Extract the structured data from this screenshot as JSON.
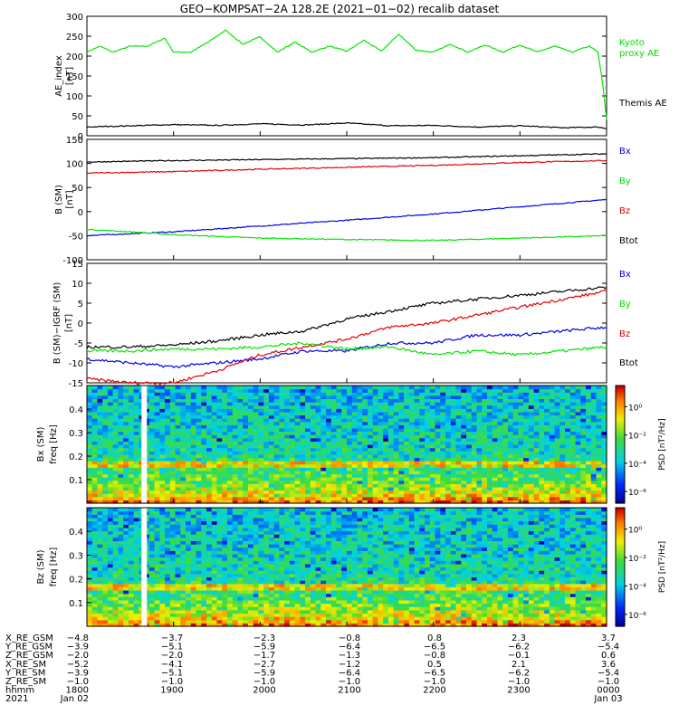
{
  "title": "GEO−KOMPSAT−2A 128.2E (2021−01−02) recalib dataset",
  "colors": {
    "black": "#000000",
    "green": "#00e600",
    "red": "#e60000",
    "blue": "#0000e6",
    "legend_green": "#00dd00",
    "legend_red": "#dd0000",
    "legend_blue": "#0000cc"
  },
  "chart_data": [
    {
      "type": "line",
      "ylabel": "AE_index [nT]",
      "ylim": [
        0,
        300
      ],
      "yticks": [
        0,
        50,
        100,
        150,
        200,
        250,
        300
      ],
      "series": [
        {
          "name": "Kyoto proxy AE",
          "color": "green",
          "x": [
            0,
            0.15,
            0.3,
            0.5,
            0.7,
            0.9,
            1.0,
            1.2,
            1.4,
            1.6,
            1.8,
            2.0,
            2.2,
            2.4,
            2.6,
            2.8,
            3.0,
            3.2,
            3.4,
            3.6,
            3.8,
            4.0,
            4.2,
            4.4,
            4.6,
            4.8,
            5.0,
            5.2,
            5.4,
            5.6,
            5.8,
            5.9,
            5.95,
            6.0
          ],
          "y": [
            210,
            225,
            210,
            225,
            225,
            245,
            210,
            210,
            235,
            265,
            230,
            248,
            210,
            235,
            210,
            225,
            212,
            240,
            212,
            255,
            215,
            210,
            230,
            210,
            228,
            210,
            228,
            210,
            225,
            210,
            225,
            210,
            140,
            40
          ]
        },
        {
          "name": "Themis AE",
          "color": "black",
          "x": [
            0,
            0.5,
            1.0,
            1.5,
            2.0,
            2.5,
            3.0,
            3.5,
            4.0,
            4.5,
            5.0,
            5.5,
            5.9,
            6.0
          ],
          "y": [
            22,
            25,
            28,
            26,
            30,
            27,
            32,
            25,
            26,
            22,
            25,
            20,
            22,
            18
          ]
        }
      ]
    },
    {
      "type": "line",
      "ylabel": "B (SM) [nT]",
      "ylim": [
        -100,
        150
      ],
      "yticks": [
        -100,
        -50,
        0,
        50,
        100,
        150
      ],
      "series": [
        {
          "name": "Bx",
          "color": "blue",
          "x": [
            0,
            1,
            2,
            3,
            4,
            5,
            6
          ],
          "y": [
            -50,
            -42,
            -30,
            -18,
            -5,
            10,
            25
          ]
        },
        {
          "name": "By",
          "color": "green",
          "x": [
            0,
            0.5,
            1,
            2,
            3,
            4,
            5,
            6
          ],
          "y": [
            -37,
            -42,
            -48,
            -55,
            -58,
            -60,
            -55,
            -50
          ]
        },
        {
          "name": "Bz",
          "color": "red",
          "x": [
            0,
            1,
            2,
            3,
            4,
            5,
            6
          ],
          "y": [
            80,
            83,
            88,
            92,
            96,
            102,
            106
          ]
        },
        {
          "name": "Btot",
          "color": "black",
          "x": [
            0,
            1,
            2,
            3,
            4,
            5,
            6
          ],
          "y": [
            103,
            106,
            108,
            110,
            112,
            116,
            120
          ]
        }
      ]
    },
    {
      "type": "line",
      "ylabel": "B (SM)−IGRF (SM) [nT]",
      "ylim": [
        -15,
        15
      ],
      "yticks": [
        -15,
        -10,
        -5,
        0,
        5,
        10,
        15
      ],
      "series": [
        {
          "name": "Bx",
          "color": "blue",
          "x": [
            0,
            0.5,
            1.0,
            1.5,
            2.0,
            2.5,
            3.0,
            3.5,
            4.0,
            4.5,
            5.0,
            5.5,
            6.0
          ],
          "y": [
            -9,
            -10,
            -11,
            -10,
            -9,
            -7,
            -7,
            -5,
            -5,
            -3,
            -3,
            -2,
            -1
          ]
        },
        {
          "name": "By",
          "color": "green",
          "x": [
            0,
            0.5,
            1.0,
            1.5,
            2.0,
            2.5,
            3.0,
            3.5,
            4.0,
            4.5,
            5.0,
            5.5,
            6.0
          ],
          "y": [
            -7,
            -7,
            -6.5,
            -6.5,
            -6,
            -5,
            -6.5,
            -6,
            -8,
            -7,
            -8,
            -7,
            -6
          ]
        },
        {
          "name": "Bz",
          "color": "red",
          "x": [
            0,
            0.5,
            1.0,
            1.5,
            2.0,
            2.5,
            3.0,
            3.5,
            4.0,
            4.5,
            5.0,
            5.5,
            6.0
          ],
          "y": [
            -14,
            -15,
            -15,
            -12,
            -8,
            -6,
            -4,
            -1,
            0,
            2,
            4,
            6,
            8
          ]
        },
        {
          "name": "Btot",
          "color": "black",
          "x": [
            0,
            0.5,
            1.0,
            1.5,
            2.0,
            2.5,
            3.0,
            3.5,
            4.0,
            4.5,
            5.0,
            5.5,
            6.0
          ],
          "y": [
            -6,
            -6,
            -5.5,
            -4.5,
            -3,
            -2,
            1,
            3,
            5,
            6,
            7,
            8,
            9
          ]
        }
      ]
    },
    {
      "type": "heatmap",
      "ylabel": "Bx (SM) freq [Hz]",
      "ylim": [
        0,
        0.5
      ],
      "yticks": [
        0.1,
        0.2,
        0.3,
        0.4
      ],
      "colorbar": {
        "label": "PSD [nT²/Hz]",
        "ticks": [
          "10⁰",
          "10⁻²",
          "10⁻⁴",
          "10⁻⁶"
        ]
      }
    },
    {
      "type": "heatmap",
      "ylabel": "Bz (SM) freq [Hz]",
      "ylim": [
        0,
        0.5
      ],
      "yticks": [
        0.1,
        0.2,
        0.3,
        0.4
      ],
      "colorbar": {
        "label": "PSD [nT²/Hz]",
        "ticks": [
          "10⁰",
          "10⁻²",
          "10⁻⁴",
          "10⁻⁶"
        ]
      }
    }
  ],
  "legends": [
    [
      {
        "text": "Kyoto",
        "color": "legend_green"
      },
      {
        "text": "proxy AE",
        "color": "legend_green"
      },
      {
        "text": "Themis AE",
        "color": "black"
      }
    ],
    [
      {
        "text": "Bx",
        "color": "legend_blue"
      },
      {
        "text": "By",
        "color": "legend_green"
      },
      {
        "text": "Bz",
        "color": "legend_red"
      },
      {
        "text": "Btot",
        "color": "black"
      }
    ],
    [
      {
        "text": "Bx",
        "color": "legend_blue"
      },
      {
        "text": "By",
        "color": "legend_green"
      },
      {
        "text": "Bz",
        "color": "legend_red"
      },
      {
        "text": "Btot",
        "color": "black"
      }
    ]
  ],
  "table": {
    "rows": [
      {
        "label": "X_RE_GSM",
        "values": [
          "−4.8",
          "−3.7",
          "−2.3",
          "−0.8",
          "0.8",
          "2.3",
          "3.7"
        ]
      },
      {
        "label": "Y_RE_GSM",
        "values": [
          "−3.9",
          "−5.1",
          "−5.9",
          "−6.4",
          "−6.5",
          "−6.2",
          "−5.4"
        ]
      },
      {
        "label": "Z_RE_GSM",
        "values": [
          "−2.0",
          "−2.0",
          "−1.7",
          "−1.3",
          "−0.8",
          "−0.1",
          "0.6"
        ]
      },
      {
        "label": "X_RE_SM",
        "values": [
          "−5.2",
          "−4.1",
          "−2.7",
          "−1.2",
          "0.5",
          "2.1",
          "3.6"
        ]
      },
      {
        "label": "Y_RE_SM",
        "values": [
          "−3.9",
          "−5.1",
          "−5.9",
          "−6.4",
          "−6.5",
          "−6.2",
          "−5.4"
        ]
      },
      {
        "label": "Z_RE_SM",
        "values": [
          "−1.0",
          "−1.0",
          "−1.0",
          "−1.0",
          "−1.0",
          "−1.0",
          "−1.0"
        ]
      },
      {
        "label": "hhmm",
        "values": [
          "1800",
          "1900",
          "2000",
          "2100",
          "2200",
          "2300",
          "0000"
        ]
      },
      {
        "label": "2021",
        "values": [
          "Jan 02",
          "",
          "",
          "",
          "",
          "",
          "Jan 03"
        ]
      }
    ]
  }
}
